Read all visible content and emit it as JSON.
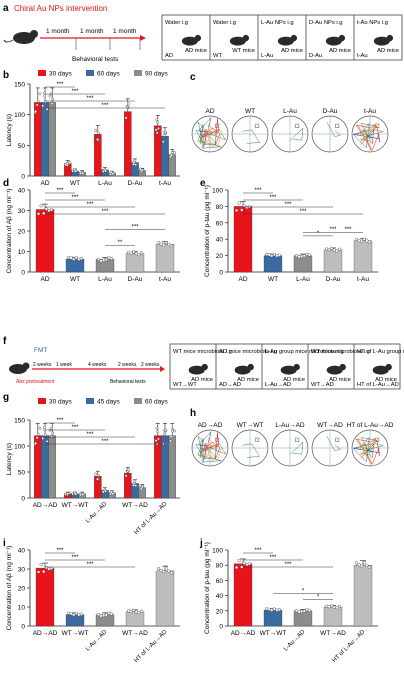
{
  "colors": {
    "red": "#e8141b",
    "blue": "#3b6aa1",
    "gray": "#8c8c8c",
    "light_gray": "#bdbdbd",
    "mid_gray": "#9e9e9e",
    "pink": "#e8141b",
    "text": "#1a1a1a"
  },
  "panel_a": {
    "label": "a",
    "title": "Chiral Au NPs intervention",
    "timeline_labels": [
      "1 month",
      "1 month",
      "1 month"
    ],
    "behavioral": "Behavioral tests",
    "boxes": [
      {
        "treatment": "Water i.g",
        "mouse": "AD mice",
        "group": "AD"
      },
      {
        "treatment": "Water i.g",
        "mouse": "WT mice",
        "group": "WT"
      },
      {
        "treatment": "L-Au NPs i.g",
        "mouse": "AD mice",
        "group": "L-Au"
      },
      {
        "treatment": "D-Au NPs i.g",
        "mouse": "AD mice",
        "group": "D-Au"
      },
      {
        "treatment": "t-Au NPs i.g",
        "mouse": "AD mice",
        "group": "t-Au"
      }
    ]
  },
  "panel_f": {
    "label": "f",
    "fmt": "FMT",
    "durations": [
      "2 weeks",
      "1 week",
      "4 weeks",
      "2 weeks",
      "2 weeks"
    ],
    "abx": "Abx pretreatment",
    "behavioral": "Behavioral tests",
    "boxes": [
      {
        "treatment": "WT mice microbiota i.g",
        "mouse": "AD mice",
        "group": "WT→WT"
      },
      {
        "treatment": "AD mice microbiota i.g",
        "mouse": "AD mice",
        "group": "AD→AD"
      },
      {
        "treatment": "L-Au group mice microbiota i.g",
        "mouse": "AD mice",
        "group": "L-Au→AD"
      },
      {
        "treatment": "WT mice microbiota i.g",
        "mouse": "AD mice",
        "group": "WT→AD"
      },
      {
        "treatment": "HT of L-Au group mice microbiota i.g",
        "mouse": "AD mice",
        "group": "HT of L-Au→AD"
      }
    ]
  },
  "panel_c": {
    "label": "c",
    "groups": [
      "AD",
      "WT",
      "L-Au",
      "D-Au",
      "t-Au"
    ]
  },
  "panel_h": {
    "label": "h",
    "groups": [
      "AD→AD",
      "WT→WT",
      "L-Au→AD",
      "WT→AD",
      "HT of L-Au→AD"
    ]
  },
  "chart_data": [
    {
      "id": "b",
      "label": "b",
      "type": "bar",
      "categories": [
        "AD",
        "WT",
        "L-Au",
        "D-Au",
        "t-Au"
      ],
      "series": [
        {
          "name": "30 days",
          "values": [
            120,
            20,
            68,
            105,
            82
          ]
        },
        {
          "name": "60 days",
          "values": [
            120,
            8,
            10,
            22,
            65
          ]
        },
        {
          "name": "90 days",
          "values": [
            120,
            6,
            5,
            9,
            35
          ]
        }
      ],
      "ylabel": "Latency (s)",
      "ylim": [
        0,
        150
      ],
      "yticks": [
        0,
        50,
        100,
        150
      ],
      "legend": "top",
      "sig": [
        "***",
        "***",
        "***",
        "***"
      ]
    },
    {
      "id": "d",
      "label": "d",
      "type": "bar",
      "categories": [
        "AD",
        "WT",
        "L-Au",
        "D-Au",
        "t-Au"
      ],
      "values": [
        30.5,
        6.3,
        6.2,
        9.0,
        13.5
      ],
      "ylabel": "Concentration of Aβ (ng ml⁻¹)",
      "ylim": [
        0,
        40
      ],
      "yticks": [
        0,
        10,
        20,
        30,
        40
      ],
      "sig": [
        "***",
        "***",
        "***",
        "***",
        "**",
        "***"
      ]
    },
    {
      "id": "e",
      "label": "e",
      "type": "bar",
      "categories": [
        "AD",
        "WT",
        "L-Au",
        "D-Au",
        "t-Au"
      ],
      "values": [
        80,
        20,
        20,
        27,
        38
      ],
      "ylabel": "Concentration of p-tau (pg ml⁻¹)",
      "ylim": [
        0,
        100
      ],
      "yticks": [
        0,
        20,
        40,
        60,
        80,
        100
      ],
      "sig": [
        "***",
        "***",
        "***",
        "***",
        "***",
        "*",
        "***"
      ]
    },
    {
      "id": "g",
      "label": "g",
      "type": "bar",
      "categories": [
        "AD→AD",
        "WT→WT",
        "L-Au→AD",
        "WT→AD",
        "HT of L-Au→AD"
      ],
      "series": [
        {
          "name": "30 days",
          "values": [
            120,
            8,
            42,
            48,
            120
          ]
        },
        {
          "name": "45 days",
          "values": [
            120,
            8,
            15,
            28,
            120
          ]
        },
        {
          "name": "60 days",
          "values": [
            120,
            8,
            10,
            20,
            120
          ]
        }
      ],
      "ylabel": "Latency (s)",
      "ylim": [
        0,
        150
      ],
      "yticks": [
        0,
        50,
        100,
        150
      ],
      "legend": "top",
      "sig": [
        "***",
        "***",
        "***",
        "***"
      ]
    },
    {
      "id": "i",
      "label": "i",
      "type": "bar",
      "categories": [
        "AD→AD",
        "WT→WT",
        "L-Au→AD",
        "WT→AD",
        "HT of L-Au→AD"
      ],
      "values": [
        30.5,
        6.0,
        6.0,
        7.5,
        29.0
      ],
      "ylabel": "Concentration of Aβ (ng ml⁻¹)",
      "ylim": [
        0,
        40
      ],
      "yticks": [
        0,
        10,
        20,
        30,
        40
      ],
      "sig": [
        "***",
        "***",
        "***"
      ]
    },
    {
      "id": "j",
      "label": "j",
      "type": "bar",
      "categories": [
        "AD→AD",
        "WT→WT",
        "L-Au→AD",
        "WT→AD",
        "HT of L-Au→AD"
      ],
      "values": [
        82,
        21,
        20,
        25,
        80
      ],
      "ylabel": "Concentration of p-tau (pg ml⁻¹)",
      "ylim": [
        0,
        100
      ],
      "yticks": [
        0,
        20,
        40,
        60,
        80,
        100
      ],
      "sig": [
        "***",
        "***",
        "***",
        "*",
        "*"
      ]
    }
  ]
}
